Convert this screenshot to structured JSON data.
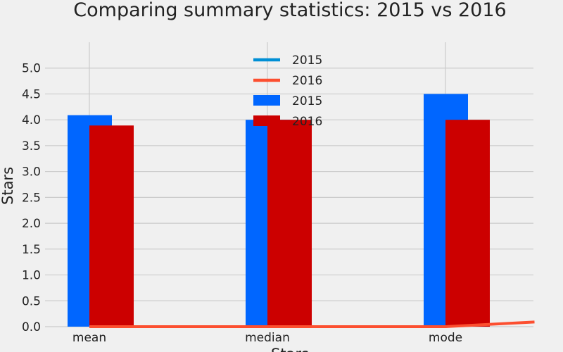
{
  "chart_data": {
    "type": "bar",
    "title": "Comparing summary statistics: 2015 vs 2016",
    "xlabel": "Stars",
    "ylabel": "Stars",
    "categories": [
      "mean",
      "median",
      "mode"
    ],
    "ylim": [
      0,
      5.5
    ],
    "yticks": [
      "0.0",
      "0.5",
      "1.0",
      "1.5",
      "2.0",
      "2.5",
      "3.0",
      "3.5",
      "4.0",
      "4.5",
      "5.0"
    ],
    "grid": true,
    "legend_position": "top-center",
    "bar_series": [
      {
        "name": "2015",
        "color": "#0066ff",
        "values": [
          4.09,
          4.0,
          4.5
        ]
      },
      {
        "name": "2016",
        "color": "#cc0000",
        "values": [
          3.89,
          4.0,
          4.0
        ]
      }
    ],
    "line_series": [
      {
        "name": "2015",
        "color": "#008fd5",
        "x": [
          0,
          1,
          2
        ],
        "y": [
          0.0,
          0.0,
          0.0
        ]
      },
      {
        "name": "2016",
        "color": "#fc4f30",
        "x": [
          0,
          1,
          2,
          2.5
        ],
        "y": [
          0.0,
          0.0,
          0.0,
          0.09
        ]
      }
    ],
    "legend": [
      {
        "label": "2015",
        "kind": "line",
        "color": "#008fd5"
      },
      {
        "label": "2016",
        "kind": "line",
        "color": "#fc4f30"
      },
      {
        "label": "2015",
        "kind": "bar",
        "color": "#0066ff"
      },
      {
        "label": "2016",
        "kind": "bar",
        "color": "#cc0000"
      }
    ]
  }
}
